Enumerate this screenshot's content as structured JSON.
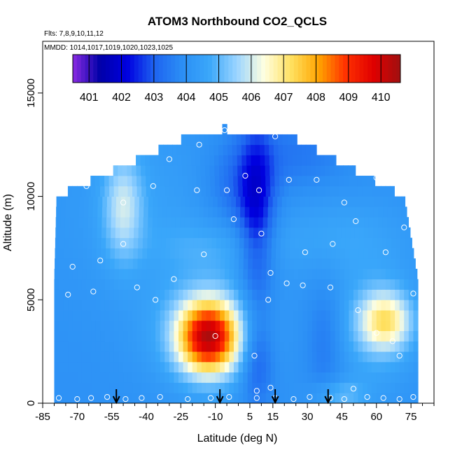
{
  "chart_data": {
    "type": "heatmap",
    "title": "ATOM3 Northbound CO2_QCLS",
    "flights_label": "Flts: 7,8,9,10,11,12",
    "dates_label": "MMDD: 1014,1017,1019,1020,1023,1025",
    "xlabel": "Latitude (deg N)",
    "ylabel": "Altitude (m)",
    "xlim": [
      -85,
      85
    ],
    "ylim": [
      0,
      17500
    ],
    "x_ticks": [
      -85,
      -70,
      -55,
      -40,
      -25,
      -10,
      5,
      15,
      30,
      45,
      60,
      75
    ],
    "y_ticks": [
      0,
      5000,
      10000,
      15000
    ],
    "colorbar": {
      "min": 400.5,
      "max": 410.6,
      "ticks": [
        401,
        402,
        403,
        404,
        405,
        406,
        407,
        408,
        409,
        410
      ],
      "colors": [
        "#8a2be2",
        "#0000a8",
        "#0000e0",
        "#1e64f0",
        "#2b8ef5",
        "#3aa7fa",
        "#9ad4ff",
        "#ffffe0",
        "#ffe060",
        "#ffa500",
        "#ff3000",
        "#e00000",
        "#a01010"
      ]
    },
    "grid": {
      "lat_bounds": [
        -80,
        78
      ],
      "altitudes": [
        250,
        750,
        1250,
        1750,
        2250,
        2750,
        3250,
        3750,
        4250,
        4750,
        5250,
        5750,
        6250,
        6750,
        7250,
        7750,
        8250,
        8750,
        9250,
        9750,
        10250,
        10750,
        11250,
        11750,
        12250,
        12750,
        13250
      ]
    },
    "sample_points": [
      {
        "lat": -78,
        "alt": 250
      },
      {
        "lat": -70,
        "alt": 200
      },
      {
        "lat": -64,
        "alt": 250
      },
      {
        "lat": -57,
        "alt": 300
      },
      {
        "lat": -49,
        "alt": 200
      },
      {
        "lat": -42,
        "alt": 250
      },
      {
        "lat": -34,
        "alt": 300
      },
      {
        "lat": -22,
        "alt": 200
      },
      {
        "lat": -12,
        "alt": 250
      },
      {
        "lat": -4,
        "alt": 300
      },
      {
        "lat": 8,
        "alt": 250
      },
      {
        "lat": 8,
        "alt": 600
      },
      {
        "lat": 14,
        "alt": 750
      },
      {
        "lat": 16,
        "alt": 250
      },
      {
        "lat": 24,
        "alt": 200
      },
      {
        "lat": 31,
        "alt": 300
      },
      {
        "lat": 40,
        "alt": 250
      },
      {
        "lat": 46,
        "alt": 200
      },
      {
        "lat": 50,
        "alt": 700
      },
      {
        "lat": 56,
        "alt": 300
      },
      {
        "lat": 63,
        "alt": 250
      },
      {
        "lat": 70,
        "alt": 200
      },
      {
        "lat": 76,
        "alt": 300
      },
      {
        "lat": -74,
        "alt": 5250
      },
      {
        "lat": -63,
        "alt": 5400
      },
      {
        "lat": -44,
        "alt": 5600
      },
      {
        "lat": -36,
        "alt": 5000
      },
      {
        "lat": -10,
        "alt": 3250
      },
      {
        "lat": 7,
        "alt": 2300
      },
      {
        "lat": 13,
        "alt": 5000
      },
      {
        "lat": 21,
        "alt": 5800
      },
      {
        "lat": 28,
        "alt": 5700
      },
      {
        "lat": 40,
        "alt": 5600
      },
      {
        "lat": 52,
        "alt": 4500
      },
      {
        "lat": 60,
        "alt": 3400
      },
      {
        "lat": 67,
        "alt": 3000
      },
      {
        "lat": 70,
        "alt": 2300
      },
      {
        "lat": 76,
        "alt": 5300
      },
      {
        "lat": -81,
        "alt": 7800
      },
      {
        "lat": -72,
        "alt": 6600
      },
      {
        "lat": -60,
        "alt": 6900
      },
      {
        "lat": -50,
        "alt": 7700
      },
      {
        "lat": -28,
        "alt": 6000
      },
      {
        "lat": -15,
        "alt": 7200
      },
      {
        "lat": -2,
        "alt": 8900
      },
      {
        "lat": 10,
        "alt": 8200
      },
      {
        "lat": 14,
        "alt": 6300
      },
      {
        "lat": 29,
        "alt": 7300
      },
      {
        "lat": 41,
        "alt": 7700
      },
      {
        "lat": 51,
        "alt": 8800
      },
      {
        "lat": 64,
        "alt": 7300
      },
      {
        "lat": 72,
        "alt": 8500
      },
      {
        "lat": -80,
        "alt": 10200
      },
      {
        "lat": -66,
        "alt": 10500
      },
      {
        "lat": -50,
        "alt": 9700
      },
      {
        "lat": -37,
        "alt": 10500
      },
      {
        "lat": -18,
        "alt": 10300
      },
      {
        "lat": -5,
        "alt": 10300
      },
      {
        "lat": 9,
        "alt": 10300
      },
      {
        "lat": 22,
        "alt": 10800
      },
      {
        "lat": 34,
        "alt": 10800
      },
      {
        "lat": 46,
        "alt": 9700
      },
      {
        "lat": 60,
        "alt": 10900
      },
      {
        "lat": -56,
        "alt": 11800
      },
      {
        "lat": -30,
        "alt": 11800
      },
      {
        "lat": -17,
        "alt": 12500
      },
      {
        "lat": 3,
        "alt": 11000
      },
      {
        "lat": 16,
        "alt": 12900
      },
      {
        "lat": 36,
        "alt": 12200
      },
      {
        "lat": 52,
        "alt": 12000
      },
      {
        "lat": -6,
        "alt": 13200
      }
    ],
    "arrows_lat": [
      -53,
      -8,
      16,
      39
    ]
  }
}
